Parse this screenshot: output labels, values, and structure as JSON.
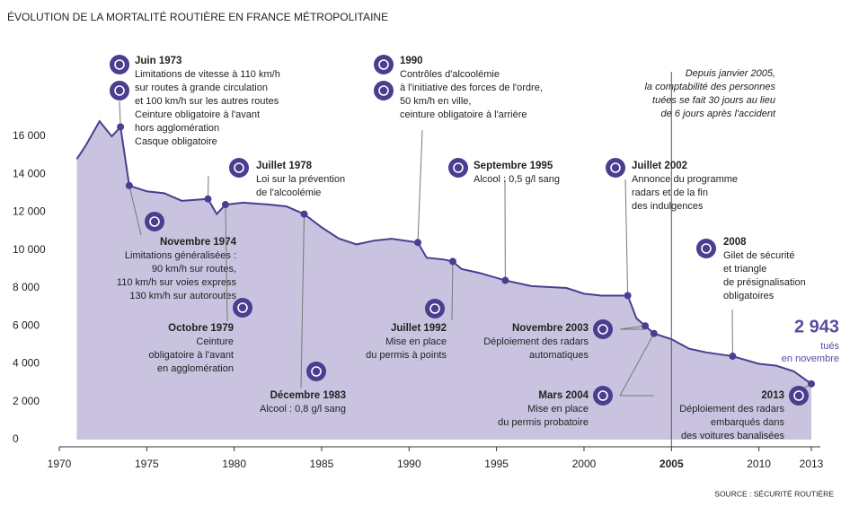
{
  "chart_data": {
    "type": "area",
    "title": "ÉVOLUTION DE LA MORTALITÉ ROUTIÈRE EN FRANCE MÉTROPOLITAINE",
    "source": "SOURCE : SÉCURITÉ ROUTIÈRE",
    "x": [
      1971,
      1971.5,
      1972.3,
      1973,
      1973.5,
      1974,
      1975,
      1976,
      1977,
      1978.5,
      1979,
      1979.5,
      1980.5,
      1982,
      1983,
      1984,
      1985,
      1986,
      1987,
      1988,
      1989,
      1990.5,
      1991,
      1992,
      1992.5,
      1993,
      1994,
      1995.5,
      1997,
      1999,
      2000,
      2001,
      2002.5,
      2003,
      2003.5,
      2004,
      2005,
      2006,
      2007,
      2008.5,
      2010,
      2011,
      2012,
      2013
    ],
    "series": [
      {
        "color": "#4b3d8f",
        "fill": "#c9c3e0",
        "values": [
          14800,
          15500,
          16800,
          16000,
          16500,
          13400,
          13100,
          13000,
          12600,
          12700,
          11900,
          12400,
          12500,
          12400,
          12300,
          11900,
          11200,
          10600,
          10300,
          10500,
          10600,
          10400,
          9600,
          9500,
          9400,
          9000,
          8800,
          8400,
          8100,
          8000,
          7700,
          7600,
          7600,
          6400,
          6000,
          5600,
          5300,
          4800,
          4600,
          4400,
          4000,
          3900,
          3600,
          2943
        ]
      }
    ],
    "xlim": [
      1970,
      2013
    ],
    "xticks": [
      1970,
      1975,
      1980,
      1985,
      1990,
      1995,
      2000,
      2005,
      2010,
      2013
    ],
    "ylim": [
      0,
      16000
    ],
    "yticks": [
      0,
      {
        "value": 2000,
        "label": "2 000"
      },
      {
        "value": 4000,
        "label": "4 000"
      },
      {
        "value": 6000,
        "label": "6 000"
      },
      {
        "value": 8000,
        "label": "8 000"
      },
      {
        "value": 10000,
        "label": "10 000"
      },
      {
        "value": 12000,
        "label": "12 000"
      },
      {
        "value": 14000,
        "label": "14 000"
      },
      {
        "value": 16000,
        "label": "16 000"
      }
    ],
    "annotations": [
      {
        "title": "Juin 1973",
        "lines": [
          "Limitations de vitesse à 110 km/h",
          "sur routes à grande circulation",
          "et 100 km/h sur les autres routes",
          "Ceinture obligatoire à l'avant",
          "hors agglomération",
          "Casque obligatoire"
        ]
      },
      {
        "title": "Novembre 1974",
        "lines": [
          "Limitations généralisées :",
          "90 km/h sur routes,",
          "110 km/h sur voies express",
          "130 km/h sur autoroutes"
        ]
      },
      {
        "title": "Juillet 1978",
        "lines": [
          "Loi sur la prévention",
          "de l'alcoolémie"
        ]
      },
      {
        "title": "Octobre 1979",
        "lines": [
          "Ceinture",
          "obligatoire à l'avant",
          "en agglomération"
        ]
      },
      {
        "title": "Décembre 1983",
        "lines": [
          "Alcool : 0,8 g/l sang"
        ]
      },
      {
        "title": "1990",
        "lines": [
          "Contrôles d'alcoolémie",
          "à l'initiative des forces de l'ordre,",
          "50 km/h en ville,",
          "ceinture obligatoire à l'arrière"
        ]
      },
      {
        "title": "Juillet 1992",
        "lines": [
          "Mise en place",
          "du permis à points"
        ]
      },
      {
        "title": "Septembre 1995",
        "lines": [
          "Alcool : 0,5 g/l sang"
        ]
      },
      {
        "title": "Novembre 2003",
        "lines": [
          "Déploiement des radars",
          "automatiques"
        ]
      },
      {
        "title": "Mars 2004",
        "lines": [
          "Mise en place",
          "du permis probatoire"
        ]
      },
      {
        "title": "Juillet 2002",
        "lines": [
          "Annonce du programme",
          "radars et de la fin",
          "des indulgences"
        ]
      },
      {
        "title": "2008",
        "lines": [
          "Gilet de sécurité",
          "et triangle",
          "de présignalisation",
          "obligatoires"
        ]
      },
      {
        "title": "2013",
        "lines": [
          "Déploiement des radars",
          "embarqués dans",
          "des voitures banalisées"
        ]
      }
    ],
    "note": [
      "Depuis janvier 2005,",
      "la comptabilité des personnes",
      "tuées se fait 30 jours au lieu",
      "de 6 jours après l'accident"
    ],
    "highlight": {
      "value": "2 943",
      "lines": [
        "tués",
        "en novembre"
      ]
    }
  }
}
